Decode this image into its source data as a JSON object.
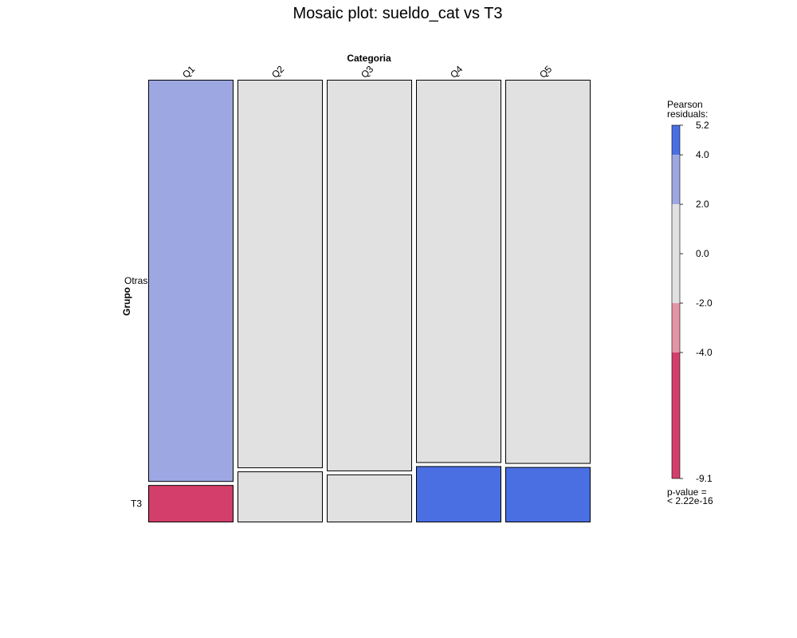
{
  "chart_data": {
    "type": "mosaic",
    "title": "Mosaic plot: sueldo_cat vs T3",
    "xlabel": "Categoria",
    "ylabel": "Grupo",
    "categories": [
      "Q1",
      "Q2",
      "Q3",
      "Q4",
      "Q5"
    ],
    "groups": [
      "Otras",
      "T3"
    ],
    "column_proportions": [
      0.2,
      0.2,
      0.2,
      0.2,
      0.2
    ],
    "t3_share": [
      0.085,
      0.116,
      0.109,
      0.128,
      0.126
    ],
    "cell_residual_color": {
      "Otras": [
        "#9DA8E3",
        "#E1E1E1",
        "#E1E1E1",
        "#E1E1E1",
        "#E1E1E1"
      ],
      "T3": [
        "#D33F6A",
        "#E1E1E1",
        "#E1E1E1",
        "#4A6FE3",
        "#4A6FE3"
      ]
    },
    "legend": {
      "title_line1": "Pearson",
      "title_line2": "residuals:",
      "range": [
        -9.1,
        5.2
      ],
      "ticks": [
        "5.2",
        "4.0",
        "2.0",
        "0.0",
        "-2.0",
        "-4.0",
        "-9.1"
      ],
      "tick_values": [
        5.2,
        4.0,
        2.0,
        0.0,
        -2.0,
        -4.0,
        -9.1
      ],
      "bands": [
        {
          "from": 4.0,
          "to": 5.2,
          "color": "#4A6FE3"
        },
        {
          "from": 2.0,
          "to": 4.0,
          "color": "#9DA8E3"
        },
        {
          "from": -2.0,
          "to": 2.0,
          "color": "#E1E1E1"
        },
        {
          "from": -4.0,
          "to": -2.0,
          "color": "#E495A5"
        },
        {
          "from": -9.1,
          "to": -4.0,
          "color": "#D33F6A"
        }
      ],
      "pvalue_line1": "p-value =",
      "pvalue_line2": "< 2.22e-16"
    }
  }
}
